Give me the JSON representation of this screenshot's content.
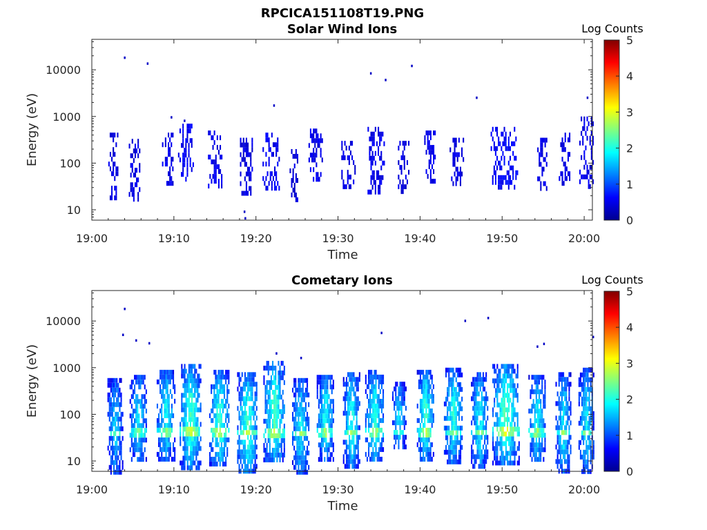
{
  "figure": {
    "filename": "RPCICA151108T19.PNG"
  },
  "colormap": [
    "#00008f",
    "#0000ff",
    "#0080ff",
    "#00ffff",
    "#80ff80",
    "#ffff00",
    "#ff8000",
    "#ff0000",
    "#800000"
  ],
  "chart_data": [
    {
      "type": "heatmap",
      "title": "Solar Wind Ions",
      "xlabel": "Time",
      "ylabel": "Energy (eV)",
      "x_ticks": [
        "19:00",
        "19:10",
        "19:20",
        "19:30",
        "19:40",
        "19:50",
        "20:00"
      ],
      "x_range_minutes": [
        0,
        61
      ],
      "y_scale": "log",
      "y_ticks": [
        10,
        100,
        1000,
        10000
      ],
      "y_tick_labels": [
        "10",
        "100",
        "1000",
        "10000"
      ],
      "y_range": [
        6,
        45000
      ],
      "colorbar": {
        "label": "Log Counts",
        "ticks": [
          "0",
          "1",
          "2",
          "3",
          "4",
          "5"
        ],
        "range": [
          0,
          5
        ]
      },
      "bursts": [
        {
          "t": 2.6,
          "w": 1.2,
          "emin": 20,
          "emax": 450,
          "level": 0.3
        },
        {
          "t": 5.2,
          "w": 1.4,
          "emin": 18,
          "emax": 420,
          "level": 0.3
        },
        {
          "t": 9.2,
          "w": 1.3,
          "emin": 35,
          "emax": 450,
          "level": 0.35
        },
        {
          "t": 11.4,
          "w": 1.8,
          "emin": 45,
          "emax": 700,
          "level": 0.4
        },
        {
          "t": 15.0,
          "w": 1.7,
          "emin": 30,
          "emax": 500,
          "level": 0.35
        },
        {
          "t": 18.8,
          "w": 1.5,
          "emin": 25,
          "emax": 350,
          "level": 0.3
        },
        {
          "t": 21.8,
          "w": 2.0,
          "emin": 30,
          "emax": 450,
          "level": 0.4
        },
        {
          "t": 24.6,
          "w": 1.0,
          "emin": 15,
          "emax": 200,
          "level": 0.25
        },
        {
          "t": 27.2,
          "w": 1.6,
          "emin": 40,
          "emax": 550,
          "level": 0.35
        },
        {
          "t": 31.2,
          "w": 1.6,
          "emin": 35,
          "emax": 300,
          "level": 0.3
        },
        {
          "t": 34.6,
          "w": 2.0,
          "emin": 25,
          "emax": 600,
          "level": 0.35
        },
        {
          "t": 38.0,
          "w": 1.4,
          "emin": 25,
          "emax": 300,
          "level": 0.3
        },
        {
          "t": 41.2,
          "w": 1.4,
          "emin": 40,
          "emax": 500,
          "level": 0.35
        },
        {
          "t": 44.4,
          "w": 1.6,
          "emin": 40,
          "emax": 350,
          "level": 0.3
        },
        {
          "t": 50.2,
          "w": 3.2,
          "emin": 30,
          "emax": 600,
          "level": 0.45
        },
        {
          "t": 54.8,
          "w": 1.4,
          "emin": 30,
          "emax": 350,
          "level": 0.3
        },
        {
          "t": 57.6,
          "w": 1.4,
          "emin": 40,
          "emax": 450,
          "level": 0.3
        },
        {
          "t": 60.2,
          "w": 1.6,
          "emin": 30,
          "emax": 1000,
          "level": 0.35
        }
      ],
      "isolated": [
        {
          "t": 3.9,
          "e": 18000
        },
        {
          "t": 6.7,
          "e": 13500
        },
        {
          "t": 9.6,
          "e": 950
        },
        {
          "t": 11.2,
          "e": 800
        },
        {
          "t": 22.1,
          "e": 1700
        },
        {
          "t": 18.5,
          "e": 9
        },
        {
          "t": 18.6,
          "e": 6.5
        },
        {
          "t": 33.9,
          "e": 8300
        },
        {
          "t": 35.7,
          "e": 6000
        },
        {
          "t": 38.9,
          "e": 12000
        },
        {
          "t": 46.8,
          "e": 2500
        },
        {
          "t": 60.3,
          "e": 2500
        }
      ]
    },
    {
      "type": "heatmap",
      "title": "Cometary Ions",
      "xlabel": "Time",
      "ylabel": "Energy (eV)",
      "x_ticks": [
        "19:00",
        "19:10",
        "19:20",
        "19:30",
        "19:40",
        "19:50",
        "20:00"
      ],
      "x_range_minutes": [
        0,
        61
      ],
      "y_scale": "log",
      "y_ticks": [
        10,
        100,
        1000,
        10000
      ],
      "y_tick_labels": [
        "10",
        "100",
        "1000",
        "10000"
      ],
      "y_range": [
        6,
        45000
      ],
      "colorbar": {
        "label": "Log Counts",
        "ticks": [
          "0",
          "1",
          "2",
          "3",
          "4",
          "5"
        ],
        "range": [
          0,
          5
        ]
      },
      "bursts": [
        {
          "t": 2.8,
          "w": 1.8,
          "emin": 6,
          "emax": 600,
          "level": 1.4
        },
        {
          "t": 5.6,
          "w": 2.0,
          "emin": 10,
          "emax": 700,
          "level": 1.5
        },
        {
          "t": 9.0,
          "w": 2.2,
          "emin": 12,
          "emax": 900,
          "level": 1.7
        },
        {
          "t": 12.0,
          "w": 2.6,
          "emin": 8,
          "emax": 1200,
          "level": 2.0
        },
        {
          "t": 15.5,
          "w": 2.4,
          "emin": 8,
          "emax": 900,
          "level": 1.9
        },
        {
          "t": 18.9,
          "w": 2.4,
          "emin": 6,
          "emax": 800,
          "level": 2.0
        },
        {
          "t": 22.2,
          "w": 2.6,
          "emin": 10,
          "emax": 1400,
          "level": 2.0
        },
        {
          "t": 25.4,
          "w": 2.0,
          "emin": 6,
          "emax": 600,
          "level": 1.6
        },
        {
          "t": 28.4,
          "w": 2.0,
          "emin": 12,
          "emax": 700,
          "level": 1.8
        },
        {
          "t": 31.6,
          "w": 2.0,
          "emin": 8,
          "emax": 800,
          "level": 1.8
        },
        {
          "t": 34.4,
          "w": 2.2,
          "emin": 10,
          "emax": 900,
          "level": 1.8
        },
        {
          "t": 37.4,
          "w": 1.6,
          "emin": 20,
          "emax": 500,
          "level": 1.5
        },
        {
          "t": 40.6,
          "w": 2.0,
          "emin": 12,
          "emax": 900,
          "level": 1.9
        },
        {
          "t": 44.0,
          "w": 2.2,
          "emin": 10,
          "emax": 1000,
          "level": 1.8
        },
        {
          "t": 47.2,
          "w": 2.0,
          "emin": 8,
          "emax": 800,
          "level": 1.7
        },
        {
          "t": 50.4,
          "w": 3.2,
          "emin": 10,
          "emax": 1200,
          "level": 2.1
        },
        {
          "t": 54.2,
          "w": 2.0,
          "emin": 10,
          "emax": 700,
          "level": 1.7
        },
        {
          "t": 57.4,
          "w": 1.8,
          "emin": 6,
          "emax": 800,
          "level": 1.6
        },
        {
          "t": 60.2,
          "w": 1.8,
          "emin": 6,
          "emax": 1000,
          "level": 1.6
        }
      ],
      "isolated": [
        {
          "t": 3.9,
          "e": 18000
        },
        {
          "t": 3.7,
          "e": 5000
        },
        {
          "t": 5.3,
          "e": 3800
        },
        {
          "t": 6.9,
          "e": 3300
        },
        {
          "t": 22.4,
          "e": 2000
        },
        {
          "t": 25.4,
          "e": 1600
        },
        {
          "t": 35.2,
          "e": 5500
        },
        {
          "t": 45.4,
          "e": 10000
        },
        {
          "t": 48.2,
          "e": 11500
        },
        {
          "t": 54.2,
          "e": 2800
        },
        {
          "t": 55.0,
          "e": 3200
        },
        {
          "t": 61.0,
          "e": 4500
        }
      ],
      "band_energy": 45
    }
  ]
}
